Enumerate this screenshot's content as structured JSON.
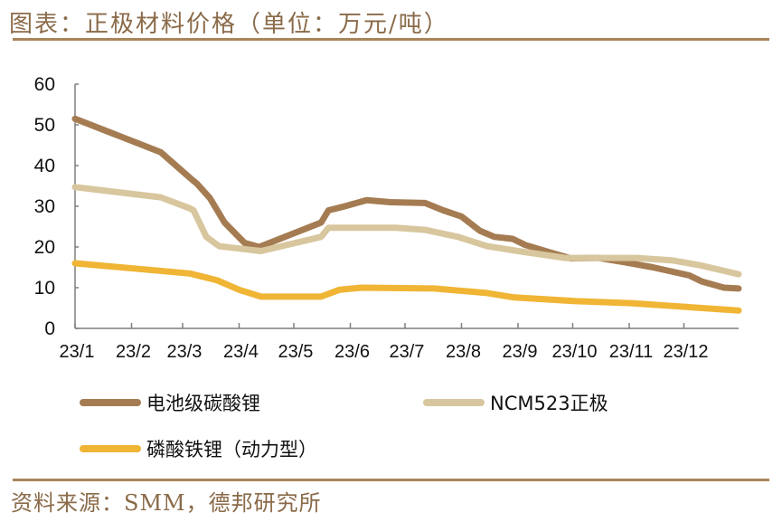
{
  "title": "图表：正极材料价格（单位：万元/吨）",
  "source": "资料来源：SMM，德邦研究所",
  "colors": {
    "accent": "#a8845a",
    "text": "#8a6a48"
  },
  "chart_data": {
    "type": "line",
    "title": "",
    "xlabel": "",
    "ylabel": "",
    "ylim": [
      0,
      60
    ],
    "yticks": [
      "0",
      "10",
      "20",
      "30",
      "40",
      "50",
      "60"
    ],
    "xlim": [
      "2023-01-01",
      "2023-12-31"
    ],
    "xticks": [
      {
        "date": "2023-01-01",
        "label": "23/1"
      },
      {
        "date": "2023-02-01",
        "label": "23/2"
      },
      {
        "date": "2023-03-01",
        "label": "23/3"
      },
      {
        "date": "2023-04-01",
        "label": "23/4"
      },
      {
        "date": "2023-05-01",
        "label": "23/5"
      },
      {
        "date": "2023-06-01",
        "label": "23/6"
      },
      {
        "date": "2023-07-01",
        "label": "23/7"
      },
      {
        "date": "2023-08-01",
        "label": "23/8"
      },
      {
        "date": "2023-09-01",
        "label": "23/9"
      },
      {
        "date": "2023-10-01",
        "label": "23/10"
      },
      {
        "date": "2023-11-01",
        "label": "23/11"
      },
      {
        "date": "2023-12-01",
        "label": "23/12"
      }
    ],
    "grid": false,
    "legend_position": "bottom",
    "series": [
      {
        "name": "电池级碳酸锂",
        "color": "#a57c52",
        "points": [
          [
            "2023-01-01",
            51.5
          ],
          [
            "2023-02-17",
            43.3
          ],
          [
            "2023-03-05",
            37.0
          ],
          [
            "2023-03-09",
            35.5
          ],
          [
            "2023-03-16",
            32.0
          ],
          [
            "2023-03-24",
            26.0
          ],
          [
            "2023-04-04",
            21.0
          ],
          [
            "2023-04-12",
            20.0
          ],
          [
            "2023-05-16",
            26.0
          ],
          [
            "2023-05-20",
            29.0
          ],
          [
            "2023-05-29",
            30.0
          ],
          [
            "2023-06-10",
            31.5
          ],
          [
            "2023-06-23",
            31.0
          ],
          [
            "2023-07-12",
            30.8
          ],
          [
            "2023-07-22",
            29.0
          ],
          [
            "2023-08-01",
            27.5
          ],
          [
            "2023-08-11",
            24.0
          ],
          [
            "2023-08-19",
            22.5
          ],
          [
            "2023-08-29",
            22.0
          ],
          [
            "2023-09-05",
            20.5
          ],
          [
            "2023-09-20",
            18.5
          ],
          [
            "2023-09-30",
            17.2
          ],
          [
            "2023-10-15",
            17.3
          ],
          [
            "2023-10-30",
            16.2
          ],
          [
            "2023-11-14",
            15.0
          ],
          [
            "2023-12-04",
            13.0
          ],
          [
            "2023-12-11",
            11.5
          ],
          [
            "2023-12-23",
            10.0
          ],
          [
            "2023-12-31",
            9.8
          ]
        ]
      },
      {
        "name": "NCM523正极",
        "color": "#d8c69e",
        "points": [
          [
            "2023-01-01",
            34.7
          ],
          [
            "2023-02-17",
            32.2
          ],
          [
            "2023-03-05",
            29.5
          ],
          [
            "2023-03-07",
            29.0
          ],
          [
            "2023-03-14",
            22.5
          ],
          [
            "2023-03-21",
            20.2
          ],
          [
            "2023-04-13",
            19.0
          ],
          [
            "2023-05-16",
            22.5
          ],
          [
            "2023-05-20",
            24.7
          ],
          [
            "2023-06-26",
            24.7
          ],
          [
            "2023-07-12",
            24.2
          ],
          [
            "2023-07-30",
            22.5
          ],
          [
            "2023-08-15",
            20.2
          ],
          [
            "2023-09-01",
            19.0
          ],
          [
            "2023-09-27",
            17.3
          ],
          [
            "2023-11-05",
            17.3
          ],
          [
            "2023-11-25",
            16.7
          ],
          [
            "2023-12-10",
            15.5
          ],
          [
            "2023-12-31",
            13.3
          ]
        ]
      },
      {
        "name": "磷酸铁锂（动力型）",
        "color": "#f0b535",
        "points": [
          [
            "2023-01-01",
            16.0
          ],
          [
            "2023-03-05",
            13.5
          ],
          [
            "2023-03-20",
            11.8
          ],
          [
            "2023-04-01",
            9.5
          ],
          [
            "2023-04-13",
            7.8
          ],
          [
            "2023-05-16",
            7.8
          ],
          [
            "2023-05-26",
            9.5
          ],
          [
            "2023-06-07",
            10.0
          ],
          [
            "2023-07-17",
            9.8
          ],
          [
            "2023-08-15",
            8.7
          ],
          [
            "2023-08-30",
            7.6
          ],
          [
            "2023-10-03",
            6.7
          ],
          [
            "2023-11-02",
            6.2
          ],
          [
            "2023-12-31",
            4.4
          ]
        ]
      }
    ]
  }
}
